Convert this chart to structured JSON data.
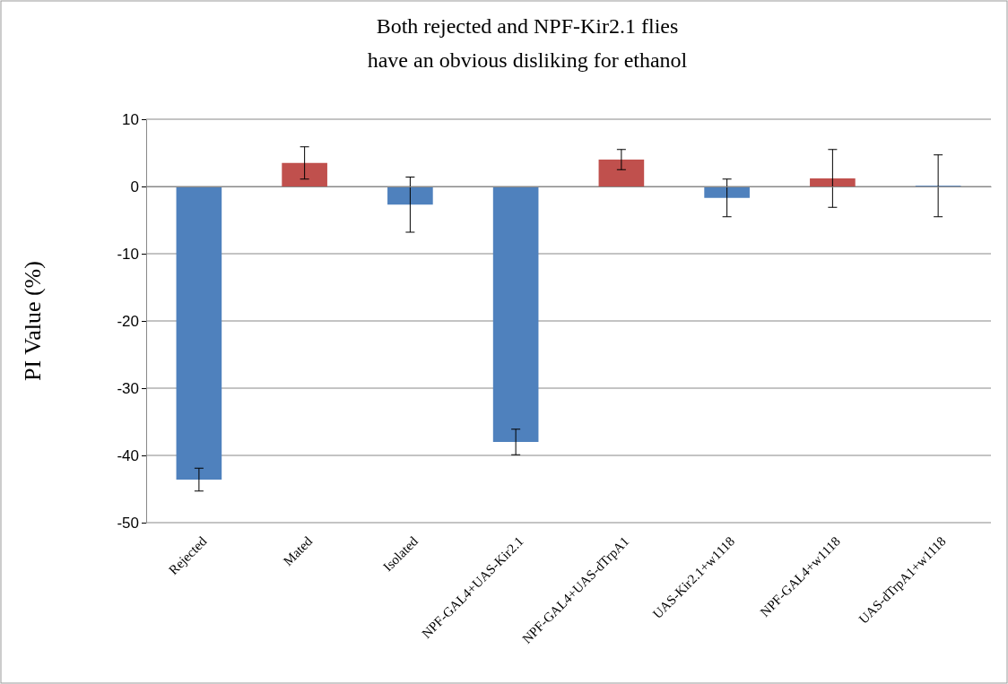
{
  "chart_data": {
    "type": "bar",
    "title": "Both rejected and NPF-Kir2.1 flies\nhave an obvious disliking for ethanol",
    "ylabel": "PI Value (%)",
    "categories": [
      "Rejected",
      "Mated",
      "Isolated",
      "NPF-GAL4+UAS-Kir2.1",
      "NPF-GAL4+UAS-dTrpA1",
      "UAS-Kir2.1+w1118",
      "NPF-GAL4+w1118",
      "UAS-dTrpA1+w1118"
    ],
    "values": [
      -43.6,
      3.5,
      -2.7,
      -38,
      4.0,
      -1.7,
      1.2,
      0.1
    ],
    "errors": [
      1.7,
      2.4,
      4.1,
      1.9,
      1.5,
      2.8,
      4.3,
      4.6
    ],
    "colors": [
      "#4f81bd",
      "#c0504d",
      "#4f81bd",
      "#4f81bd",
      "#c0504d",
      "#4f81bd",
      "#c0504d",
      "#4f81bd"
    ],
    "ylim": [
      -50,
      10
    ],
    "yticks": [
      -50,
      -40,
      -30,
      -20,
      -10,
      0,
      10
    ],
    "grid": "y"
  }
}
